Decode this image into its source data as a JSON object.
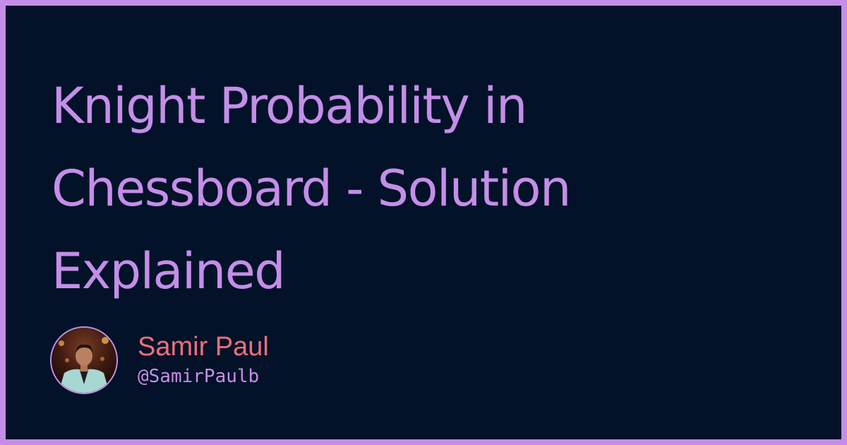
{
  "title": "Knight Probability in Chessboard - Solution Explained",
  "author": {
    "name": "Samir Paul",
    "handle": "@SamirPaulb",
    "avatar_icon": "author-photo"
  },
  "colors": {
    "border": "#c48ee8",
    "background": "#031228",
    "title": "#c48ee8",
    "author_name": "#ec6f7c",
    "author_handle": "#c48ee8"
  }
}
